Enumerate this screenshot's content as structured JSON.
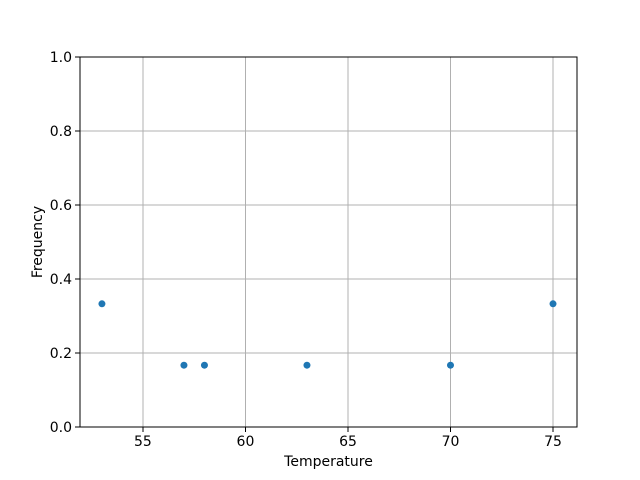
{
  "figure": {
    "background": "#ffffff"
  },
  "chart_data": {
    "type": "scatter",
    "title": "",
    "xlabel": "Temperature",
    "ylabel": "Frequency",
    "x": [
      53,
      57,
      58,
      63,
      70,
      75
    ],
    "y": [
      0.333,
      0.167,
      0.167,
      0.167,
      0.167,
      0.333
    ],
    "xlim": [
      51.93,
      76.17
    ],
    "ylim": [
      0.0,
      1.0
    ],
    "xticks": [
      55,
      60,
      65,
      70,
      75
    ],
    "xtick_labels": [
      "55",
      "60",
      "65",
      "70",
      "75"
    ],
    "yticks": [
      0.0,
      0.2,
      0.4,
      0.6,
      0.8,
      1.0
    ],
    "ytick_labels": [
      "0.0",
      "0.2",
      "0.4",
      "0.6",
      "0.8",
      "1.0"
    ],
    "grid": true,
    "legend_position": "none",
    "marker_color": "#1f77b4",
    "grid_color": "#b0b0b0",
    "axis_color": "#000000",
    "text_color": "#000000"
  }
}
